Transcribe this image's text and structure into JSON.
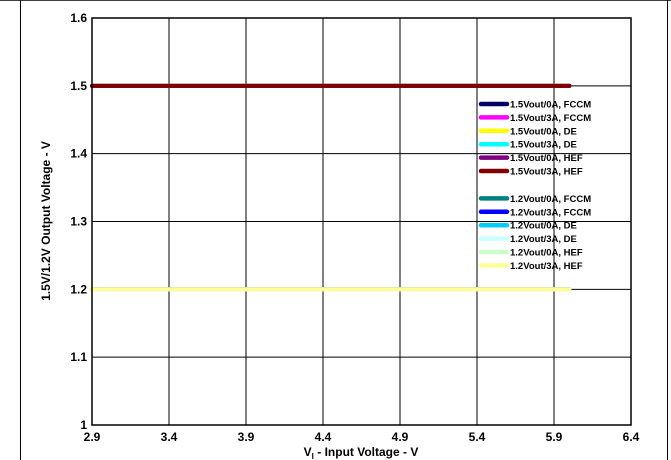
{
  "chart_data": {
    "type": "line",
    "xlabel": "V<sub>I</sub> - Input Voltage - V",
    "xlabel_display": "V",
    "xlabel_sub": "I",
    "xlabel_rest": " - Input Voltage - V",
    "ylabel": "1.5V/1.2V Output Voltage - V",
    "xlim": [
      2.9,
      6.4
    ],
    "ylim": [
      1.0,
      1.6
    ],
    "xticks": [
      "2.9",
      "3.4",
      "3.9",
      "4.4",
      "4.9",
      "5.4",
      "5.9",
      "6.4"
    ],
    "yticks": [
      "1",
      "1.1",
      "1.2",
      "1.3",
      "1.4",
      "1.5",
      "1.6"
    ],
    "grid": true,
    "legend_position": "right",
    "x": [
      2.9,
      6.0
    ],
    "series": [
      {
        "name": "1.5Vout/0A, FCCM",
        "color": "#000066",
        "values": [
          1.5,
          1.5
        ]
      },
      {
        "name": "1.5Vout/3A, FCCM",
        "color": "#ff00ff",
        "values": [
          1.5,
          1.5
        ]
      },
      {
        "name": "1.5Vout/0A, DE",
        "color": "#ffff00",
        "values": [
          1.5,
          1.5
        ]
      },
      {
        "name": "1.5Vout/3A, DE",
        "color": "#00ffff",
        "values": [
          1.5,
          1.5
        ]
      },
      {
        "name": "1.5Vout/0A, HEF",
        "color": "#800080",
        "values": [
          1.5,
          1.5
        ]
      },
      {
        "name": "1.5Vout/3A, HEF",
        "color": "#800000",
        "values": [
          1.5,
          1.5
        ]
      },
      {
        "name": "1.2Vout/0A, FCCM",
        "color": "#008080",
        "values": [
          1.2,
          1.2
        ]
      },
      {
        "name": "1.2Vout/3A, FCCM",
        "color": "#0000ff",
        "values": [
          1.2,
          1.2
        ]
      },
      {
        "name": "1.2Vout/0A, DE",
        "color": "#00ccff",
        "values": [
          1.2,
          1.2
        ]
      },
      {
        "name": "1.2Vout/3A, DE",
        "color": "#ccffff",
        "values": [
          1.2,
          1.2
        ]
      },
      {
        "name": "1.2Vout/0A, HEF",
        "color": "#ccffcc",
        "values": [
          1.2,
          1.2
        ]
      },
      {
        "name": "1.2Vout/3A, HEF",
        "color": "#ffff99",
        "values": [
          1.2,
          1.2
        ]
      }
    ]
  }
}
